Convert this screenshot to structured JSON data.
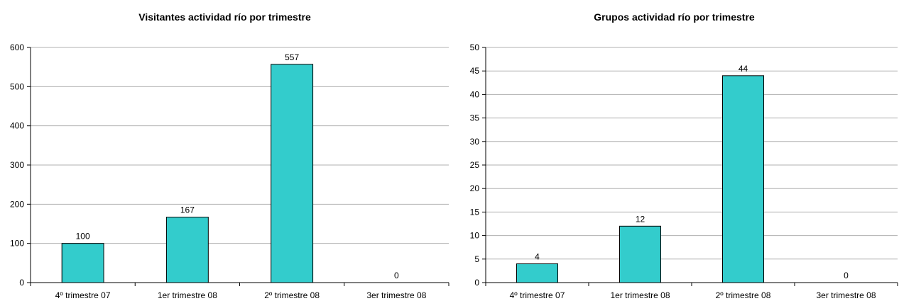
{
  "chart_data": [
    {
      "type": "bar",
      "title": "Visitantes actividad río por trimestre",
      "categories": [
        "4º trimestre 07",
        "1er trimestre 08",
        "2º trimestre 08",
        "3er trimestre 08"
      ],
      "values": [
        100,
        167,
        557,
        0
      ],
      "data_labels": [
        "100",
        "167",
        "557",
        "0"
      ],
      "ylim": [
        0,
        600
      ],
      "yticks": [
        0,
        100,
        200,
        300,
        400,
        500,
        600
      ],
      "grid": true,
      "legend": "none",
      "bar_color": "#33CCCC"
    },
    {
      "type": "bar",
      "title": "Grupos actividad río por trimestre",
      "categories": [
        "4º trimestre 07",
        "1er trimestre 08",
        "2º trimestre 08",
        "3er trimestre 08"
      ],
      "values": [
        4,
        12,
        44,
        0
      ],
      "data_labels": [
        "4",
        "12",
        "44",
        "0"
      ],
      "ylim": [
        0,
        50
      ],
      "yticks": [
        0,
        5,
        10,
        15,
        20,
        25,
        30,
        35,
        40,
        45,
        50
      ],
      "grid": true,
      "legend": "none",
      "bar_color": "#33CCCC"
    }
  ]
}
